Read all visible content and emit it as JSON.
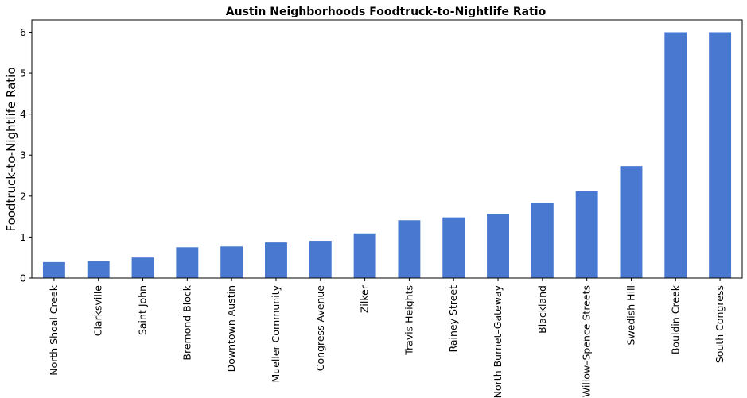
{
  "chart_data": {
    "type": "bar",
    "title": "Austin Neighborhoods Foodtruck-to-Nightlife Ratio",
    "xlabel": "",
    "ylabel": "Foodtruck-to-Nightlife Ratio",
    "ylim": [
      0,
      6.3
    ],
    "yticks": [
      0,
      1,
      2,
      3,
      4,
      5,
      6
    ],
    "grid": false,
    "bar_color": "#4878cf",
    "categories": [
      "North Shoal Creek",
      "Clarksville",
      "Saint John",
      "Bremond Block",
      "Downtown Austin",
      "Mueller Community",
      "Congress Avenue",
      "Zilker",
      "Travis Heights",
      "Rainey Street",
      "North Burnet–Gateway",
      "Blackland",
      "Willow–Spence Streets",
      "Swedish Hill",
      "Bouldin Creek",
      "South Congress"
    ],
    "values": [
      0.39,
      0.42,
      0.5,
      0.75,
      0.77,
      0.87,
      0.91,
      1.09,
      1.41,
      1.48,
      1.57,
      1.83,
      2.12,
      2.73,
      6.0,
      6.0
    ]
  }
}
